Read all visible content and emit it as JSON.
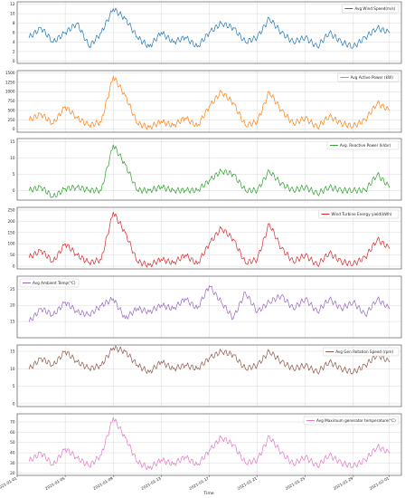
{
  "figure": {
    "xlabel": "Time",
    "x_ticks": [
      "2021-01-01",
      "2021-01-05",
      "2021-01-09",
      "2021-01-13",
      "2021-01-17",
      "2021-01-21",
      "2021-01-25",
      "2021-01-29",
      "2021-02-01"
    ],
    "x_range": [
      "2021-01-01",
      "2021-02-02"
    ]
  },
  "chart_data": [
    {
      "type": "line",
      "series": [
        {
          "name": "Avg Wind Speed(m/s)",
          "color": "#1f77b4",
          "x": [
            "2021-01-02",
            "2021-01-03",
            "2021-01-04",
            "2021-01-05",
            "2021-01-06",
            "2021-01-07",
            "2021-01-08",
            "2021-01-09",
            "2021-01-10",
            "2021-01-11",
            "2021-01-12",
            "2021-01-13",
            "2021-01-14",
            "2021-01-15",
            "2021-01-16",
            "2021-01-17",
            "2021-01-18",
            "2021-01-19",
            "2021-01-20",
            "2021-01-21",
            "2021-01-22",
            "2021-01-23",
            "2021-01-24",
            "2021-01-25",
            "2021-01-26",
            "2021-01-27",
            "2021-01-28",
            "2021-01-29",
            "2021-01-30",
            "2021-01-31",
            "2021-02-01"
          ],
          "values": [
            5,
            7,
            4,
            6,
            8,
            3,
            6,
            11,
            9,
            5,
            3,
            6,
            4,
            5,
            3,
            6,
            8,
            7,
            4,
            5,
            9,
            6,
            4,
            5,
            3,
            6,
            4,
            3,
            5,
            7,
            6
          ]
        }
      ],
      "yticks": [
        0,
        2,
        4,
        6,
        8,
        10,
        12
      ],
      "ylim": [
        -0.5,
        12.5
      ],
      "legend_position": "top-right",
      "grid": true
    },
    {
      "type": "line",
      "series": [
        {
          "name": "Avg Active Power (kW)",
          "color": "#ff7f0e",
          "x": [
            "2021-01-02",
            "2021-01-03",
            "2021-01-04",
            "2021-01-05",
            "2021-01-06",
            "2021-01-07",
            "2021-01-08",
            "2021-01-09",
            "2021-01-10",
            "2021-01-11",
            "2021-01-12",
            "2021-01-13",
            "2021-01-14",
            "2021-01-15",
            "2021-01-16",
            "2021-01-17",
            "2021-01-18",
            "2021-01-19",
            "2021-01-20",
            "2021-01-21",
            "2021-01-22",
            "2021-01-23",
            "2021-01-24",
            "2021-01-25",
            "2021-01-26",
            "2021-01-27",
            "2021-01-28",
            "2021-01-29",
            "2021-01-30",
            "2021-01-31",
            "2021-02-01"
          ],
          "values": [
            250,
            400,
            150,
            600,
            300,
            100,
            200,
            1400,
            900,
            150,
            50,
            200,
            100,
            300,
            80,
            600,
            1000,
            700,
            100,
            200,
            1000,
            500,
            150,
            300,
            50,
            350,
            150,
            80,
            250,
            700,
            500
          ]
        }
      ],
      "yticks": [
        0,
        250,
        500,
        750,
        1000,
        1250,
        1500
      ],
      "ylim": [
        -80,
        1560
      ],
      "legend_position": "top-right",
      "grid": true
    },
    {
      "type": "line",
      "series": [
        {
          "name": "Avg. Reactive Power (kVar)",
          "color": "#2ca02c",
          "x": [
            "2021-01-02",
            "2021-01-03",
            "2021-01-04",
            "2021-01-05",
            "2021-01-06",
            "2021-01-07",
            "2021-01-08",
            "2021-01-09",
            "2021-01-10",
            "2021-01-11",
            "2021-01-12",
            "2021-01-13",
            "2021-01-14",
            "2021-01-15",
            "2021-01-16",
            "2021-01-17",
            "2021-01-18",
            "2021-01-19",
            "2021-01-20",
            "2021-01-21",
            "2021-01-22",
            "2021-01-23",
            "2021-01-24",
            "2021-01-25",
            "2021-01-26",
            "2021-01-27",
            "2021-01-28",
            "2021-01-29",
            "2021-01-30",
            "2021-01-31",
            "2021-02-01"
          ],
          "values": [
            0,
            1,
            -2,
            0.5,
            1,
            0,
            0,
            14,
            8,
            0,
            0,
            1,
            0,
            0,
            0,
            3,
            6,
            5,
            0,
            0,
            6,
            2,
            0,
            1,
            -1,
            1,
            0,
            0,
            0,
            5,
            1
          ]
        }
      ],
      "yticks": [
        0,
        5,
        10,
        15
      ],
      "ylim": [
        -3,
        16
      ],
      "legend_position": "top-right",
      "grid": true
    },
    {
      "type": "line",
      "series": [
        {
          "name": "Wind Turbine Energy yield(kWh)",
          "color": "#d62728",
          "x": [
            "2021-01-02",
            "2021-01-03",
            "2021-01-04",
            "2021-01-05",
            "2021-01-06",
            "2021-01-07",
            "2021-01-08",
            "2021-01-09",
            "2021-01-10",
            "2021-01-11",
            "2021-01-12",
            "2021-01-13",
            "2021-01-14",
            "2021-01-15",
            "2021-01-16",
            "2021-01-17",
            "2021-01-18",
            "2021-01-19",
            "2021-01-20",
            "2021-01-21",
            "2021-01-22",
            "2021-01-23",
            "2021-01-24",
            "2021-01-25",
            "2021-01-26",
            "2021-01-27",
            "2021-01-28",
            "2021-01-29",
            "2021-01-30",
            "2021-01-31",
            "2021-02-01"
          ],
          "values": [
            40,
            70,
            20,
            100,
            50,
            15,
            30,
            240,
            150,
            20,
            5,
            30,
            15,
            50,
            10,
            100,
            170,
            120,
            15,
            30,
            190,
            80,
            20,
            50,
            5,
            60,
            20,
            10,
            40,
            120,
            80
          ]
        }
      ],
      "yticks": [
        0,
        50,
        100,
        150,
        200,
        250
      ],
      "ylim": [
        -12,
        262
      ],
      "legend_position": "top-right",
      "grid": true
    },
    {
      "type": "line",
      "series": [
        {
          "name": "Avg Ambient Temp(°C)",
          "color": "#9467bd",
          "x": [
            "2021-01-02",
            "2021-01-03",
            "2021-01-04",
            "2021-01-05",
            "2021-01-06",
            "2021-01-07",
            "2021-01-08",
            "2021-01-09",
            "2021-01-10",
            "2021-01-11",
            "2021-01-12",
            "2021-01-13",
            "2021-01-14",
            "2021-01-15",
            "2021-01-16",
            "2021-01-17",
            "2021-01-18",
            "2021-01-19",
            "2021-01-20",
            "2021-01-21",
            "2021-01-22",
            "2021-01-23",
            "2021-01-24",
            "2021-01-25",
            "2021-01-26",
            "2021-01-27",
            "2021-01-28",
            "2021-01-29",
            "2021-01-30",
            "2021-01-31",
            "2021-02-01"
          ],
          "values": [
            15,
            19,
            17,
            21,
            18,
            17,
            20,
            22,
            16,
            19,
            18,
            20,
            19,
            22,
            19,
            26,
            21,
            16,
            24,
            18,
            21,
            23,
            19,
            22,
            18,
            22,
            19,
            21,
            17,
            22,
            19
          ]
        }
      ],
      "yticks": [
        15,
        20,
        25
      ],
      "ylim": [
        10,
        29
      ],
      "legend_position": "top-left",
      "grid": true
    },
    {
      "type": "line",
      "series": [
        {
          "name": "Avg Gen Rotation Speed (rpm)",
          "color": "#8c564b",
          "x": [
            "2021-01-02",
            "2021-01-03",
            "2021-01-04",
            "2021-01-05",
            "2021-01-06",
            "2021-01-07",
            "2021-01-08",
            "2021-01-09",
            "2021-01-10",
            "2021-01-11",
            "2021-01-12",
            "2021-01-13",
            "2021-01-14",
            "2021-01-15",
            "2021-01-16",
            "2021-01-17",
            "2021-01-18",
            "2021-01-19",
            "2021-01-20",
            "2021-01-21",
            "2021-01-22",
            "2021-01-23",
            "2021-01-24",
            "2021-01-25",
            "2021-01-26",
            "2021-01-27",
            "2021-01-28",
            "2021-01-29",
            "2021-01-30",
            "2021-01-31",
            "2021-02-01"
          ],
          "values": [
            10,
            13,
            11,
            15,
            12,
            10,
            11,
            16,
            15,
            11,
            9,
            12,
            10,
            11,
            10,
            13,
            15,
            14,
            10,
            11,
            15,
            12,
            10,
            11,
            9,
            12,
            10,
            9,
            11,
            14,
            12
          ]
        }
      ],
      "yticks": [
        0,
        5,
        10,
        15
      ],
      "ylim": [
        -0.8,
        16.8
      ],
      "legend_position": "top-right",
      "grid": true
    },
    {
      "type": "line",
      "series": [
        {
          "name": "Avg Maximum generator temperature(°C)",
          "color": "#e377c2",
          "x": [
            "2021-01-02",
            "2021-01-03",
            "2021-01-04",
            "2021-01-05",
            "2021-01-06",
            "2021-01-07",
            "2021-01-08",
            "2021-01-09",
            "2021-01-10",
            "2021-01-11",
            "2021-01-12",
            "2021-01-13",
            "2021-01-14",
            "2021-01-15",
            "2021-01-16",
            "2021-01-17",
            "2021-01-18",
            "2021-01-19",
            "2021-01-20",
            "2021-01-21",
            "2021-01-22",
            "2021-01-23",
            "2021-01-24",
            "2021-01-25",
            "2021-01-26",
            "2021-01-27",
            "2021-01-28",
            "2021-01-29",
            "2021-01-30",
            "2021-01-31",
            "2021-02-01"
          ],
          "values": [
            32,
            40,
            28,
            44,
            35,
            27,
            38,
            74,
            55,
            31,
            25,
            33,
            29,
            36,
            28,
            42,
            55,
            48,
            30,
            33,
            56,
            40,
            29,
            36,
            27,
            38,
            30,
            27,
            33,
            46,
            40
          ]
        }
      ],
      "yticks": [
        20,
        30,
        40,
        50,
        60,
        70
      ],
      "ylim": [
        18,
        78
      ],
      "legend_position": "top-right",
      "grid": true
    }
  ]
}
